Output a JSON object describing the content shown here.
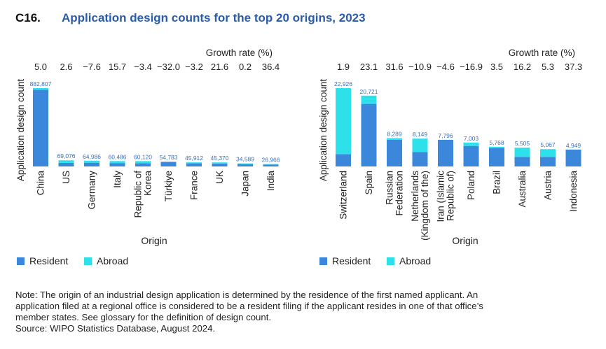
{
  "figure": {
    "id": "C16.",
    "title": "Application design counts for the top 20 origins, 2023"
  },
  "colors": {
    "resident": "#3b87dc",
    "abroad": "#2ee0ea",
    "title": "#2a5caa",
    "value_label": "#3b6fb5"
  },
  "chart_data": [
    {
      "type": "bar",
      "stacked": true,
      "title": "",
      "xlabel": "Origin",
      "ylabel": "Application design count",
      "growth_label": "Growth rate (%)",
      "ylim": [
        0,
        882807
      ],
      "categories": [
        "China",
        "US",
        "Germany",
        "Italy",
        "Republic of Korea",
        "Türkiye",
        "France",
        "UK",
        "Japan",
        "India"
      ],
      "category_lines": [
        [
          "China"
        ],
        [
          "US"
        ],
        [
          "Germany"
        ],
        [
          "Italy"
        ],
        [
          "Republic of",
          "Korea"
        ],
        [
          "Türkiye"
        ],
        [
          "France"
        ],
        [
          "UK"
        ],
        [
          "Japan"
        ],
        [
          "India"
        ]
      ],
      "totals": [
        882807,
        69076,
        64986,
        60486,
        60120,
        54783,
        45912,
        45370,
        34589,
        26966
      ],
      "total_labels": [
        "882,807",
        "69,076",
        "64,986",
        "60,486",
        "60,120",
        "54,783",
        "45,912",
        "45,370",
        "34,589",
        "26,966"
      ],
      "growth": [
        "5.0",
        "2.6",
        "−7.6",
        "15.7",
        "−3.4",
        "−32.0",
        "−3.2",
        "21.6",
        "0.2",
        "36.4"
      ],
      "series": [
        {
          "name": "Resident",
          "values": [
            864000,
            40000,
            42000,
            38000,
            37000,
            50000,
            35000,
            33000,
            26000,
            20000
          ]
        },
        {
          "name": "Abroad",
          "values": [
            18807,
            29076,
            22986,
            22486,
            23120,
            4783,
            10912,
            12370,
            8589,
            6966
          ]
        }
      ],
      "legend": [
        "Resident",
        "Abroad"
      ],
      "legend_position": "bottom-left"
    },
    {
      "type": "bar",
      "stacked": true,
      "title": "",
      "xlabel": "Origin",
      "ylabel": "Application design count",
      "growth_label": "Growth rate (%)",
      "ylim": [
        0,
        22926
      ],
      "categories": [
        "Switzerland",
        "Spain",
        "Russian Federation",
        "Netherlands (Kingdom of the)",
        "Iran (Islamic Republic of)",
        "Poland",
        "Brazil",
        "Australia",
        "Austria",
        "Indonesia"
      ],
      "category_lines": [
        [
          "Switzerland"
        ],
        [
          "Spain"
        ],
        [
          "Russian",
          "Federation"
        ],
        [
          "Netherlands",
          "(Kingdom of the)"
        ],
        [
          "Iran (Islamic",
          "Republic of)"
        ],
        [
          "Poland"
        ],
        [
          "Brazil"
        ],
        [
          "Australia"
        ],
        [
          "Austria"
        ],
        [
          "Indonesia"
        ]
      ],
      "totals": [
        22926,
        20721,
        8289,
        8149,
        7796,
        7003,
        5768,
        5505,
        5067,
        4949
      ],
      "total_labels": [
        "22,926",
        "20,721",
        "8,289",
        "8,149",
        "7,796",
        "7,003",
        "5,768",
        "5,505",
        "5,067",
        "4,949"
      ],
      "growth": [
        "1.9",
        "23.1",
        "31.6",
        "−10.9",
        "−4.6",
        "−16.9",
        "3.5",
        "16.2",
        "5.3",
        "37.3"
      ],
      "series": [
        {
          "name": "Resident",
          "values": [
            3600,
            18300,
            7800,
            4200,
            7796,
            6000,
            5400,
            2800,
            2800,
            4949
          ]
        },
        {
          "name": "Abroad",
          "values": [
            19326,
            2421,
            489,
            3949,
            0,
            1003,
            368,
            2705,
            2267,
            0
          ]
        }
      ],
      "legend": [
        "Resident",
        "Abroad"
      ],
      "legend_position": "bottom-left"
    }
  ],
  "note": {
    "lines": [
      "Note: The origin of an industrial design application is determined by the residence of the first named applicant. An",
      "application filed at a regional office is considered to be a resident filing if the applicant resides in one of that office’s",
      "member states. See glossary for the definition of design count."
    ],
    "source": "Source: WIPO Statistics Database, August 2024."
  }
}
